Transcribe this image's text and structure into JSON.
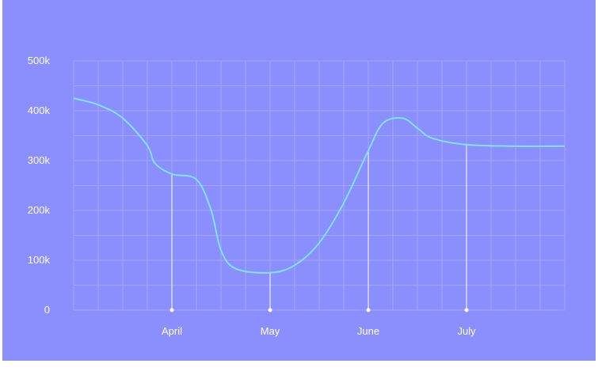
{
  "chart_data": {
    "type": "line",
    "title": "",
    "xlabel": "",
    "ylabel": "",
    "ylim": [
      0,
      500000
    ],
    "y_ticks": [
      {
        "value": 0,
        "label": "0"
      },
      {
        "value": 100000,
        "label": "100k"
      },
      {
        "value": 200000,
        "label": "200k"
      },
      {
        "value": 300000,
        "label": "300k"
      },
      {
        "value": 400000,
        "label": "400k"
      },
      {
        "value": 500000,
        "label": "500k"
      }
    ],
    "x_domain": [
      0,
      10
    ],
    "x_ticks": [
      {
        "value": 2,
        "label": "April"
      },
      {
        "value": 4,
        "label": "May"
      },
      {
        "value": 6,
        "label": "June"
      },
      {
        "value": 8,
        "label": "July"
      }
    ],
    "grid": true,
    "series": [
      {
        "color": "#7ee3f3",
        "points": [
          [
            0.0,
            425000
          ],
          [
            0.5,
            412000
          ],
          [
            1.0,
            385000
          ],
          [
            1.5,
            330000
          ],
          [
            1.65,
            295000
          ],
          [
            2.0,
            273000
          ],
          [
            2.5,
            262000
          ],
          [
            2.8,
            200000
          ],
          [
            3.0,
            120000
          ],
          [
            3.3,
            83000
          ],
          [
            4.0,
            75000
          ],
          [
            4.5,
            90000
          ],
          [
            5.0,
            135000
          ],
          [
            5.5,
            215000
          ],
          [
            6.0,
            320000
          ],
          [
            6.3,
            375000
          ],
          [
            6.7,
            385000
          ],
          [
            7.0,
            365000
          ],
          [
            7.3,
            345000
          ],
          [
            8.0,
            332000
          ],
          [
            9.0,
            329000
          ],
          [
            10.0,
            329000
          ]
        ]
      }
    ],
    "colors": {
      "background": "#8b8ffd",
      "line": "#7ee3f3",
      "grid": "#a3a7fd",
      "text": "#ffffff"
    }
  }
}
